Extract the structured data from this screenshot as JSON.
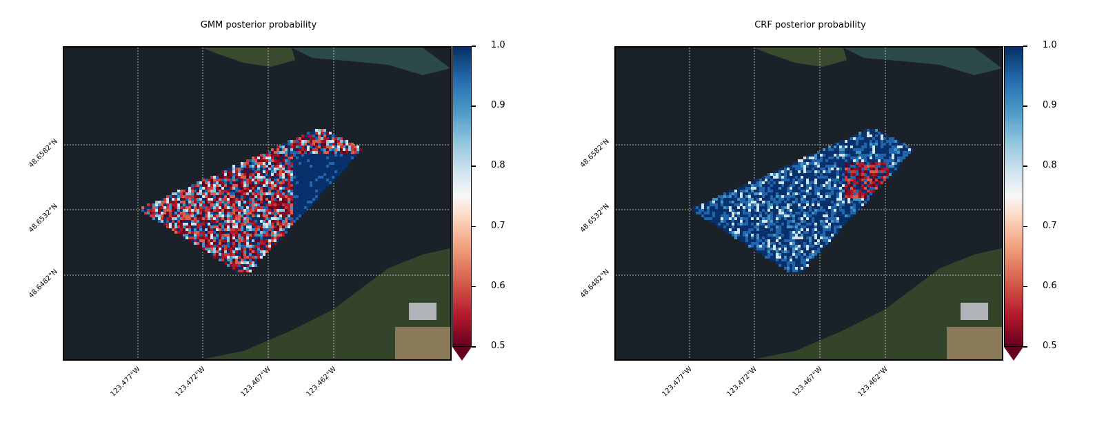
{
  "panels": [
    {
      "title": "GMM posterior probability",
      "dominant": "mixed",
      "lat_labels": [
        "48.6582°N",
        "48.6532°N",
        "48.6482°N"
      ],
      "lon_labels": [
        "123.477°W",
        "123.472°W",
        "123.467°W",
        "123.462°W"
      ]
    },
    {
      "title": "CRF posterior probability",
      "dominant": "blue",
      "lat_labels": [
        "48.6582°N",
        "48.6532°N",
        "48.6482°N"
      ],
      "lon_labels": [
        "123.477°W",
        "123.472°W",
        "123.467°W",
        "123.462°W"
      ]
    }
  ],
  "colorbar": {
    "ticks": [
      "0.5",
      "0.6",
      "0.7",
      "0.8",
      "0.9",
      "1.0"
    ],
    "min": 0.5,
    "max": 1.0,
    "colormap": "RdBu",
    "extend": "min"
  },
  "colors": {
    "water": "#1a2128",
    "land": "#3b4a2c",
    "high": "#08306b",
    "low": "#8b0d1e"
  }
}
